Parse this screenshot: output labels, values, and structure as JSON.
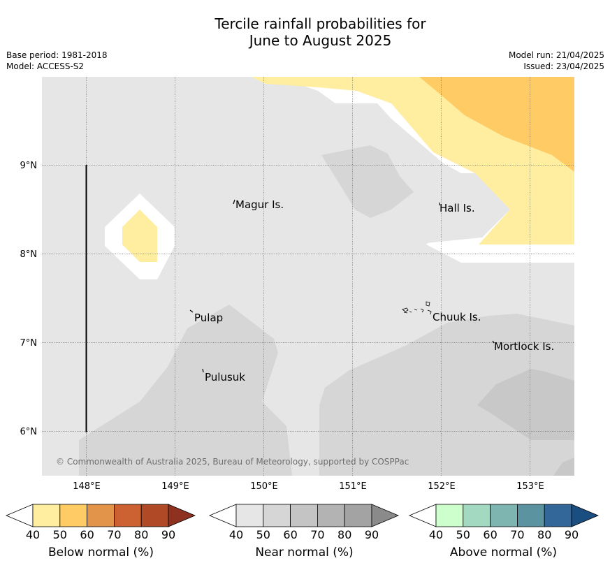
{
  "title_line1": "Tercile rainfall probabilities for",
  "title_line2": "June to August 2025",
  "base_period": "Base period: 1981-2018",
  "model": "Model: ACCESS-S2",
  "model_run": "Model run: 21/04/2025",
  "issued": "Issued: 23/04/2025",
  "copyright": "© Commonwealth of Australia 2025, Bureau of Meteorology, supported by COSPPac",
  "lon_ticks": [
    "148°E",
    "149°E",
    "150°E",
    "151°E",
    "152°E",
    "153°E"
  ],
  "lat_ticks": [
    "9°N",
    "8°N",
    "7°N",
    "6°N"
  ],
  "places": [
    {
      "name": "Magur Is."
    },
    {
      "name": "Hall Is."
    },
    {
      "name": "Pulap"
    },
    {
      "name": "Chuuk Is."
    },
    {
      "name": "Mortlock Is."
    },
    {
      "name": "Pulusuk"
    }
  ],
  "colorbars": [
    {
      "label": "Below normal (%)",
      "ticks": [
        "40",
        "50",
        "60",
        "70",
        "80",
        "90"
      ],
      "colors": [
        "#ffeda0",
        "#fecb65",
        "#e2944a",
        "#cc6231",
        "#b04a26",
        "#8e3120"
      ]
    },
    {
      "label": "Near normal (%)",
      "ticks": [
        "40",
        "50",
        "60",
        "70",
        "80",
        "90"
      ],
      "colors": [
        "#e6e6e6",
        "#d6d6d6",
        "#c4c4c4",
        "#b3b3b3",
        "#a3a3a3",
        "#8a8a8a"
      ]
    },
    {
      "label": "Above normal (%)",
      "ticks": [
        "40",
        "50",
        "60",
        "70",
        "80",
        "90"
      ],
      "colors": [
        "#ccffcc",
        "#a3d9c0",
        "#7fb5b0",
        "#5b93a0",
        "#336699",
        "#1a4d80"
      ]
    }
  ],
  "map_colors": {
    "white": "#ffffff",
    "near_40": "#e6e6e6",
    "near_50": "#d6d6d6",
    "near_60": "#c8c8c8",
    "below_40": "#ffeda0",
    "below_50": "#fecb65"
  }
}
